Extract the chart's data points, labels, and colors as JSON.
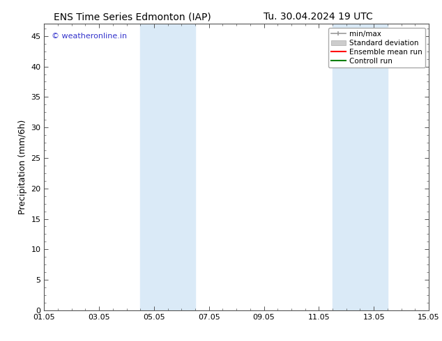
{
  "title_left": "ENS Time Series Edmonton (IAP)",
  "title_right": "Tu. 30.04.2024 19 UTC",
  "ylabel": "Precipitation (mm/6h)",
  "ylim": [
    0,
    47
  ],
  "yticks": [
    0,
    5,
    10,
    15,
    20,
    25,
    30,
    35,
    40,
    45
  ],
  "xtick_labels": [
    "01.05",
    "03.05",
    "05.05",
    "07.05",
    "09.05",
    "11.05",
    "13.05",
    "15.05"
  ],
  "xtick_positions": [
    0,
    2,
    4,
    6,
    8,
    10,
    12,
    14
  ],
  "xlim": [
    0,
    14
  ],
  "shaded_bands": [
    {
      "x_start": 3.5,
      "x_end": 5.5
    },
    {
      "x_start": 10.5,
      "x_end": 12.5
    }
  ],
  "shaded_color": "#daeaf7",
  "background_color": "#ffffff",
  "watermark_text": "© weatheronline.in",
  "watermark_color": "#3333cc",
  "legend_items": [
    {
      "label": "min/max",
      "color": "#999999",
      "style": "minmax"
    },
    {
      "label": "Standard deviation",
      "color": "#cccccc",
      "style": "fill"
    },
    {
      "label": "Ensemble mean run",
      "color": "#ff0000",
      "style": "line"
    },
    {
      "label": "Controll run",
      "color": "#008000",
      "style": "line"
    }
  ],
  "title_fontsize": 10,
  "axis_label_fontsize": 9,
  "tick_fontsize": 8,
  "legend_fontsize": 7.5,
  "watermark_fontsize": 8
}
